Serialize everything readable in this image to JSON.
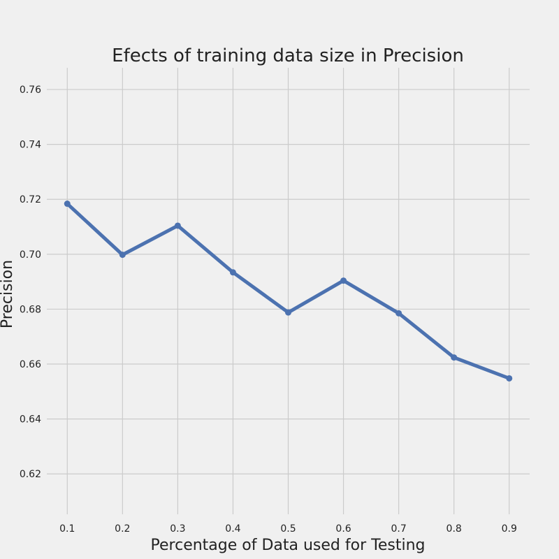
{
  "chart_data": {
    "type": "line",
    "title": "Efects of training data size in Precision",
    "xlabel": "Percentage of Data used for Testing",
    "ylabel": "Precision",
    "x": [
      0.1,
      0.2,
      0.3,
      0.4,
      0.5,
      0.6,
      0.7,
      0.8,
      0.9
    ],
    "series": [
      {
        "values": [
          0.7184,
          0.6998,
          0.7104,
          0.6934,
          0.6788,
          0.6904,
          0.6785,
          0.6624,
          0.6548
        ]
      }
    ],
    "xticks": [
      "0.1",
      "0.2",
      "0.3",
      "0.4",
      "0.5",
      "0.6",
      "0.7",
      "0.8",
      "0.9"
    ],
    "yticks": [
      "0.62",
      "0.64",
      "0.66",
      "0.68",
      "0.70",
      "0.72",
      "0.74",
      "0.76"
    ],
    "xlim": [
      0.063,
      0.937
    ],
    "ylim": [
      0.6053,
      0.7679
    ],
    "grid": true,
    "line_color": "#4c72b0",
    "background_color": "#f0f0f0",
    "grid_color": "#cbcbcb"
  }
}
